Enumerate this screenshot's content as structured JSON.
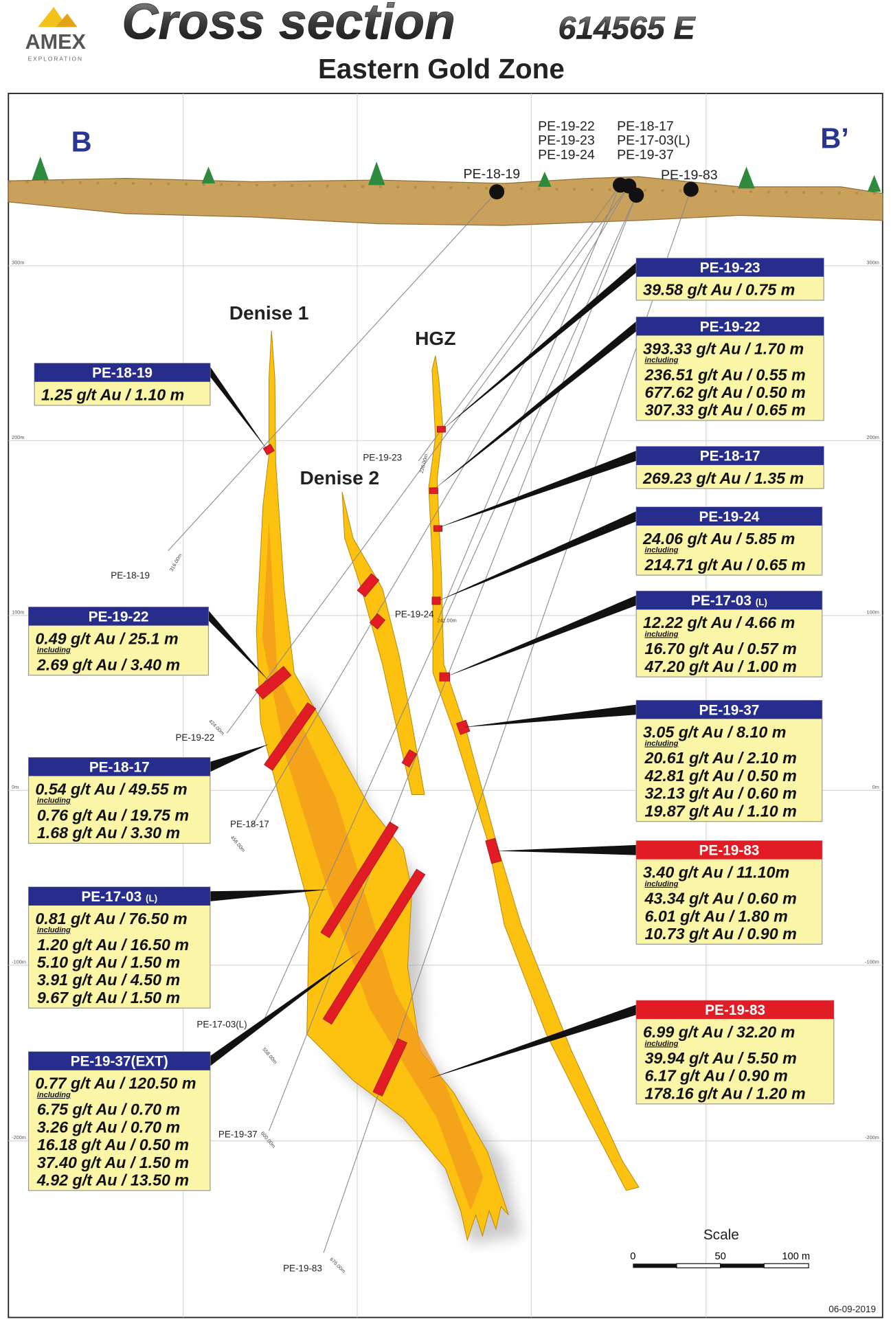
{
  "header": {
    "logo": "AMEX",
    "logo_sub": "EXPLORATION",
    "title": "Cross section",
    "section": "614565 E",
    "subtitle": "Eastern Gold Zone"
  },
  "section_ends": [
    "B",
    "B’"
  ],
  "collar_labels": [
    [
      "PE-19-22",
      "PE-19-23",
      "PE-19-24"
    ],
    [
      "PE-18-17",
      "PE-17-03(L)",
      "PE-19-37"
    ],
    "PE-18-19",
    "PE-19-83"
  ],
  "zones": [
    "Denise 1",
    "HGZ",
    "Denise 2"
  ],
  "elevations": [
    "300m",
    "200m",
    "100m",
    "0m",
    "-100m",
    "-200m"
  ],
  "traces": [
    {
      "hole": "PE-18-19",
      "depth": "316.00m"
    },
    {
      "hole": "PE-19-23",
      "depth": "228.00m"
    },
    {
      "hole": "PE-19-24",
      "depth": "241.00m"
    },
    {
      "hole": "PE-19-22",
      "depth": "424.00m"
    },
    {
      "hole": "PE-18-17",
      "depth": "456.00m"
    },
    {
      "hole": "PE-17-03(L)",
      "depth": "558.00m"
    },
    {
      "hole": "PE-19-37",
      "depth": "600.00m"
    },
    {
      "hole": "PE-19-83",
      "depth": "676.00m"
    }
  ],
  "intercepts": [
    {
      "hole": "PE-18-19",
      "main": "1.25 g/t Au / 1.10 m"
    },
    {
      "hole": "PE-19-22",
      "main": "0.49 g/t Au / 25.1 m",
      "including": "including",
      "details": [
        "2.69 g/t Au / 3.40 m"
      ]
    },
    {
      "hole": "PE-18-17",
      "main": "0.54 g/t Au / 49.55 m",
      "including": "including",
      "details": [
        "0.76 g/t Au / 19.75 m",
        "1.68 g/t Au / 3.30 m"
      ]
    },
    {
      "hole": "PE-17-03",
      "suffix": "(L)",
      "main": "0.81 g/t Au / 76.50 m",
      "including": "including",
      "details": [
        "1.20 g/t Au / 16.50 m",
        "5.10 g/t Au / 1.50 m",
        "3.91 g/t Au / 4.50 m",
        "9.67 g/t Au / 1.50 m"
      ]
    },
    {
      "hole": "PE-19-37(EXT)",
      "main": "0.77 g/t Au / 120.50 m",
      "including": "including",
      "details": [
        "6.75 g/t Au / 0.70 m",
        "3.26 g/t Au / 0.70 m",
        "16.18 g/t Au / 0.50 m",
        "37.40 g/t Au / 1.50 m",
        "4.92 g/t Au / 13.50 m"
      ]
    },
    {
      "hole": "PE-19-23",
      "main": "39.58 g/t Au / 0.75 m"
    },
    {
      "hole": "PE-19-22",
      "main": "393.33 g/t Au / 1.70 m",
      "including": "including",
      "details": [
        "236.51 g/t Au / 0.55 m",
        "677.62 g/t Au / 0.50 m",
        "307.33 g/t Au / 0.65 m"
      ]
    },
    {
      "hole": "PE-18-17",
      "main": "269.23 g/t Au / 1.35 m"
    },
    {
      "hole": "PE-19-24",
      "main": "24.06 g/t Au / 5.85 m",
      "including": "including",
      "details": [
        "214.71 g/t Au / 0.65 m"
      ]
    },
    {
      "hole": "PE-17-03",
      "suffix": "(L)",
      "main": "12.22 g/t Au / 4.66 m",
      "including": "including",
      "details": [
        "16.70 g/t Au / 0.57 m",
        "47.20 g/t Au / 1.00 m"
      ]
    },
    {
      "hole": "PE-19-37",
      "main": "3.05 g/t Au / 8.10 m",
      "including": "including",
      "details": [
        "20.61 g/t Au / 2.10 m",
        "42.81 g/t Au / 0.50 m",
        "32.13 g/t Au / 0.60 m",
        "19.87 g/t Au / 1.10 m"
      ]
    },
    {
      "hole": "PE-19-83",
      "main": "3.40 g/t Au / 11.10m",
      "including": "including",
      "details": [
        "43.34 g/t Au / 0.60 m",
        "6.01 g/t Au / 1.80 m",
        "10.73 g/t Au / 0.90 m"
      ]
    },
    {
      "hole": "PE-19-83",
      "main": "6.99 g/t Au / 32.20 m",
      "including": "including",
      "details": [
        "39.94 g/t Au / 5.50 m",
        "6.17 g/t Au / 0.90 m",
        "178.16 g/t Au / 1.20 m"
      ]
    }
  ],
  "scale": {
    "title": "Scale",
    "ticks": [
      "0",
      "50",
      "100 m"
    ]
  },
  "date": "06-09-2019"
}
